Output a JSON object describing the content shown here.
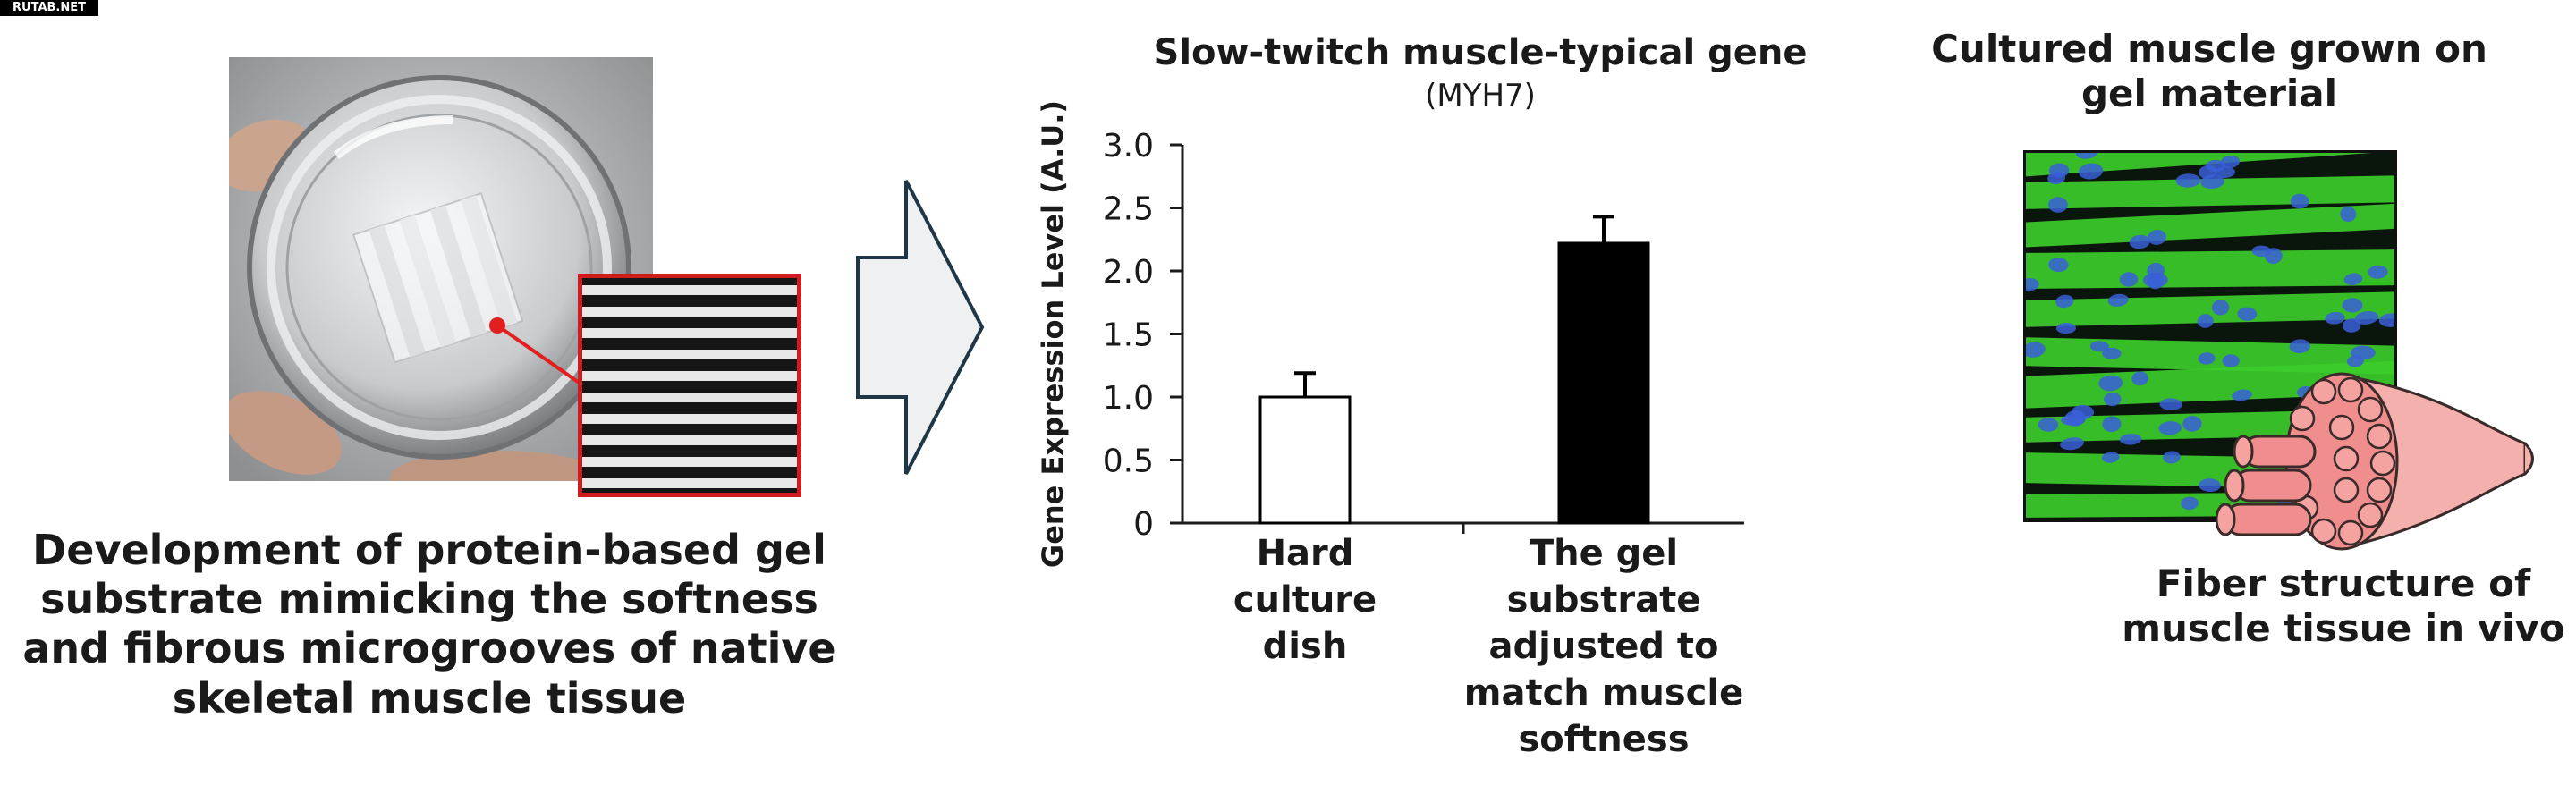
{
  "watermark": "RUTAB.NET",
  "left_caption": "Development of protein-based gel substrate mimicking the softness and fibrous microgrooves of native skeletal muscle tissue",
  "right_panel": {
    "title": "Cultured muscle grown on gel material",
    "fiber_caption": "Fiber structure of muscle tissue in vivo"
  },
  "colors": {
    "arrow_fill": "#eff0f1",
    "arrow_stroke": "#1e3646",
    "bar_hard": "#ffffff",
    "bar_gel": "#000000",
    "inset_border": "#d01c1c",
    "fiber_green": "#3ccc2a",
    "nuclei_blue": "#3a5fd8",
    "muscle_pink": "#f08d8d"
  },
  "chart_data": {
    "type": "bar",
    "title": "Slow-twitch muscle-typical gene",
    "subtitle": "(MYH7)",
    "xlabel": "",
    "ylabel": "Gene Expression Level (A.U.)",
    "ylim": [
      0,
      3.0
    ],
    "yticks": [
      "0",
      "0.5",
      "1.0",
      "1.5",
      "2.0",
      "2.5",
      "3.0"
    ],
    "ytick_values": [
      0,
      0.5,
      1.0,
      1.5,
      2.0,
      2.5,
      3.0
    ],
    "categories": [
      "Hard culture dish",
      "The gel substrate adjusted to match muscle softness"
    ],
    "category_lines": [
      [
        "Hard",
        "culture",
        "dish"
      ],
      [
        "The gel",
        "substrate",
        "adjusted to",
        "match muscle",
        "softness"
      ]
    ],
    "values": [
      1.0,
      2.22
    ],
    "errors": [
      0.19,
      0.21
    ],
    "grid": false,
    "legend": "none"
  }
}
